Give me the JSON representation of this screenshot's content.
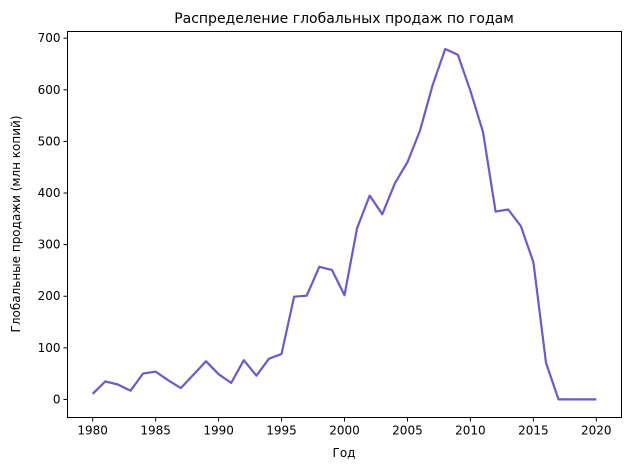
{
  "chart_data": {
    "type": "line",
    "title": "Распределение глобальных продаж по годам",
    "xlabel": "Год",
    "ylabel": "Глобальные продажи (млн копий)",
    "xlim": [
      1978,
      2022
    ],
    "ylim": [
      -35,
      713
    ],
    "xticks": [
      1980,
      1985,
      1990,
      1995,
      2000,
      2005,
      2010,
      2015,
      2020
    ],
    "yticks": [
      0,
      100,
      200,
      300,
      400,
      500,
      600,
      700
    ],
    "grid": false,
    "color": "#6a5acd",
    "x": [
      1980,
      1981,
      1982,
      1983,
      1984,
      1985,
      1986,
      1987,
      1988,
      1989,
      1990,
      1991,
      1992,
      1993,
      1994,
      1995,
      1996,
      1997,
      1998,
      1999,
      2000,
      2001,
      2002,
      2003,
      2004,
      2005,
      2006,
      2007,
      2008,
      2009,
      2010,
      2011,
      2012,
      2013,
      2014,
      2015,
      2016,
      2017,
      2018,
      2019,
      2020
    ],
    "values": [
      11,
      35,
      29,
      17,
      50,
      54,
      37,
      22,
      48,
      74,
      49,
      32,
      76,
      46,
      79,
      88,
      199,
      201,
      257,
      251,
      202,
      332,
      395,
      359,
      419,
      460,
      521,
      609,
      679,
      668,
      598,
      518,
      364,
      368,
      336,
      266,
      71,
      0,
      0,
      0,
      0
    ]
  }
}
